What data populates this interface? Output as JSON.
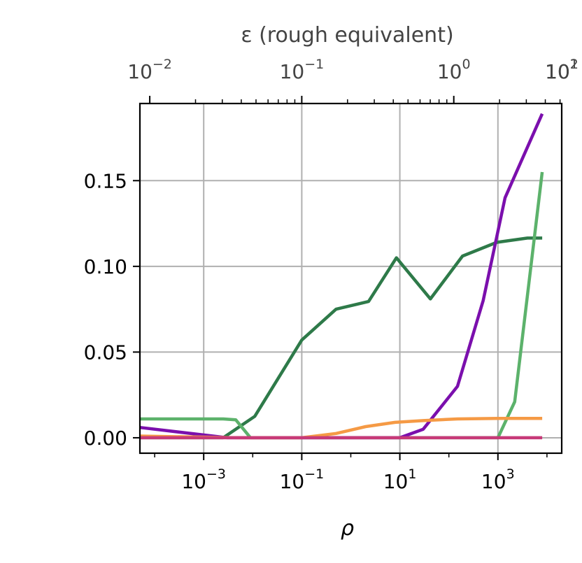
{
  "chart_data": {
    "type": "line",
    "xlabel": "ρ",
    "x2label": "ε (rough equivalent)",
    "ylabel": "",
    "xscale": "log",
    "x2scale": "log",
    "xlim": [
      5e-05,
      20000
    ],
    "ylim": [
      -0.009,
      0.195
    ],
    "grid": true,
    "legend": "none",
    "yticks": [
      "0.00",
      "0.05",
      "0.10",
      "0.15"
    ],
    "ytick_values": [
      0,
      0.05,
      0.1,
      0.15
    ],
    "xticks": [
      {
        "value": 0.001,
        "base": "10",
        "exp": "−3"
      },
      {
        "value": 0.1,
        "base": "10",
        "exp": "−1"
      },
      {
        "value": 10,
        "base": "10",
        "exp": "1"
      },
      {
        "value": 1000,
        "base": "10",
        "exp": "3"
      }
    ],
    "x2ticks": [
      {
        "value": 0.01,
        "base": "10",
        "exp": "−2"
      },
      {
        "value": 0.1,
        "base": "10",
        "exp": "−1"
      },
      {
        "value": 1,
        "base": "10",
        "exp": "0"
      },
      {
        "value": 10,
        "base": "10",
        "exp": "1"
      },
      {
        "value": 100,
        "base": "10",
        "exp": "2"
      }
    ],
    "x2_to_x": {
      "rho_ref": 0.1,
      "eps_ref": 0.1,
      "rho_per_eps_decade": 3.1
    },
    "series": [
      {
        "color": "#2e7a49",
        "points": [
          [
            5e-05,
            0
          ],
          [
            0.0025,
            0
          ],
          [
            0.011,
            0.0125
          ],
          [
            0.1,
            0.057
          ],
          [
            0.5,
            0.075
          ],
          [
            2.3,
            0.0795
          ],
          [
            8.5,
            0.105
          ],
          [
            42,
            0.081
          ],
          [
            190,
            0.106
          ],
          [
            950,
            0.114
          ],
          [
            4000,
            0.1165
          ],
          [
            8000,
            0.1165
          ]
        ]
      },
      {
        "color": "#5cb26b",
        "points": [
          [
            5e-05,
            0.011
          ],
          [
            0.0025,
            0.011
          ],
          [
            0.0045,
            0.0105
          ],
          [
            0.009,
            0
          ],
          [
            1000,
            0
          ],
          [
            2200,
            0.021
          ],
          [
            8000,
            0.155
          ]
        ]
      },
      {
        "color": "#7b0fad",
        "points": [
          [
            5e-05,
            0.006
          ],
          [
            0.003,
            0
          ],
          [
            10,
            0
          ],
          [
            30,
            0.005
          ],
          [
            150,
            0.03
          ],
          [
            500,
            0.08
          ],
          [
            1400,
            0.14
          ],
          [
            8000,
            0.189
          ]
        ]
      },
      {
        "color": "#f59a45",
        "points": [
          [
            5e-05,
            0.001
          ],
          [
            0.005,
            0
          ],
          [
            0.1,
            0
          ],
          [
            0.5,
            0.0025
          ],
          [
            2,
            0.0065
          ],
          [
            8,
            0.009
          ],
          [
            30,
            0.01
          ],
          [
            150,
            0.011
          ],
          [
            1000,
            0.0113
          ],
          [
            8000,
            0.0113
          ]
        ]
      },
      {
        "color": "#c73a78",
        "points": [
          [
            5e-05,
            0
          ],
          [
            8000,
            0
          ]
        ]
      }
    ]
  }
}
